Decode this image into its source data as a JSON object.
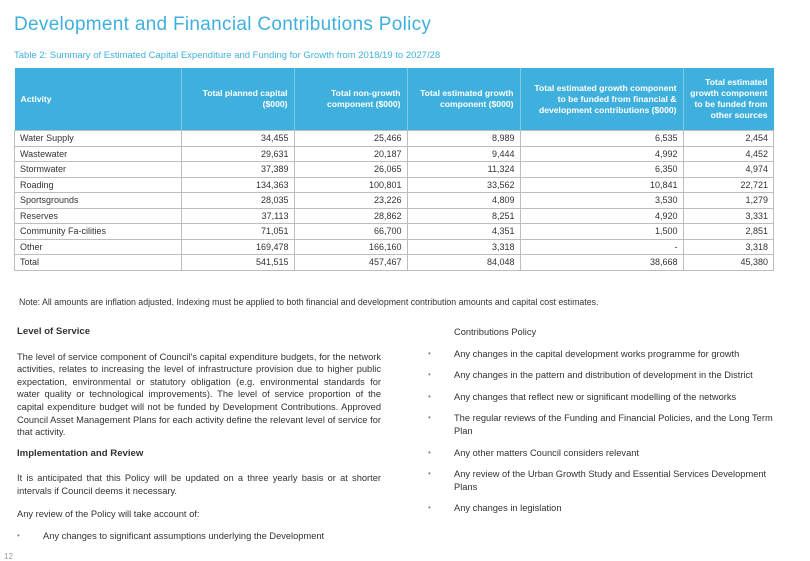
{
  "title": "Development and Financial Contributions Policy",
  "table_caption": "Table 2: Summary of Estimated Capital Expenditure and Funding for Growth from 2018/19 to 2027/28",
  "table": {
    "headers": [
      "Activity",
      "Total planned capital ($000)",
      "Total non-growth component ($000)",
      "Total estimated growth component ($000)",
      "Total estimated growth component to be funded from financial & development contributions ($000)",
      "Total estimated growth component to be funded from other sources"
    ],
    "rows": [
      [
        "Water Supply",
        "34,455",
        "25,466",
        "8,989",
        "6,535",
        "2,454"
      ],
      [
        "Wastewater",
        "29,631",
        "20,187",
        "9,444",
        "4,992",
        "4,452"
      ],
      [
        "Stormwater",
        "37,389",
        "26,065",
        "11,324",
        "6,350",
        "4,974"
      ],
      [
        "Roading",
        "134,363",
        "100,801",
        "33,562",
        "10,841",
        "22,721"
      ],
      [
        "Sportsgrounds",
        "28,035",
        "23,226",
        "4,809",
        "3,530",
        "1,279"
      ],
      [
        "Reserves",
        "37,113",
        "28,862",
        "8,251",
        "4,920",
        "3,331"
      ],
      [
        "Community Fa-cilities",
        "71,051",
        "66,700",
        "4,351",
        "1,500",
        "2,851"
      ],
      [
        "Other",
        "169,478",
        "166,160",
        "3,318",
        "-",
        "3,318"
      ],
      [
        "Total",
        "541,515",
        "457,467",
        "84,048",
        "38,668",
        "45,380"
      ]
    ]
  },
  "note": "Note: All amounts are inflation adjusted. Indexing must be applied to both financial and development contribution amounts and capital cost estimates.",
  "left": {
    "heading1": "Level of Service",
    "para1": "The level of service component of Council's capital expenditure budgets, for the network activities, relates to increasing the level of infrastructure provision due to higher public expectation, environmental or statutory obligation (e.g. environmental standards for water quality or technological improvements). The level of service proportion of the capital expenditure budget will not be funded by Development Contributions. Approved Council Asset Management Plans for each activity define the relevant level of service for that activity.",
    "heading2": "Implementation and Review",
    "para2": "It is anticipated that this Policy will be updated on a three yearly basis or at shorter intervals if Council deems it necessary.",
    "para3": "Any review of the Policy will take account of:",
    "bullet1": "Any changes to significant assumptions underlying the Development"
  },
  "right": {
    "continuation": "Contributions Policy",
    "bullets": [
      "Any changes in the capital development works programme for growth",
      "Any changes in the pattern and distribution of development in the District",
      "Any changes that reflect new or significant modelling of the networks",
      "The regular reviews of the Funding and Financial Policies, and the Long Term Plan",
      "Any other matters Council considers relevant",
      "Any review of the Urban Growth Study and Essential Services Development Plans",
      "Any changes in legislation"
    ]
  },
  "bullet_glyph": "•",
  "page_number": "12",
  "colors": {
    "accent": "#3fb0de",
    "text": "#333333"
  }
}
